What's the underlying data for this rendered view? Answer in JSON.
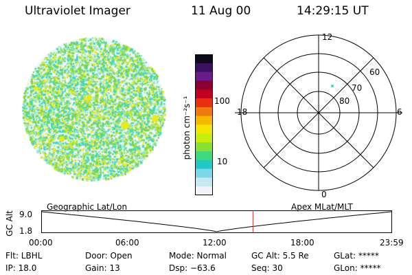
{
  "header": {
    "instrument": "Ultraviolet Imager",
    "date": "11 Aug 00",
    "time": "14:29:15 UT"
  },
  "colorbar": {
    "unit_label": "photon cm⁻²s⁻¹",
    "ticks": [
      "100",
      "10"
    ],
    "colors": [
      "#0a0a18",
      "#3a1060",
      "#6a1a8a",
      "#8a0030",
      "#c00020",
      "#e83010",
      "#f07a10",
      "#f5b800",
      "#f2e600",
      "#c8ee10",
      "#8ae030",
      "#40d880",
      "#20c8c8",
      "#7ad8e8",
      "#c8e8f0",
      "#f0f4f8"
    ]
  },
  "polar_plot": {
    "mlt_labels": {
      "top": "12",
      "left": "18",
      "right": "6",
      "bottom": "0"
    },
    "lat_labels": [
      "60",
      "70",
      "80"
    ]
  },
  "timeline": {
    "left_title": "Geographic Lat/Lon",
    "right_title": "Apex MLat/MLT",
    "ylabel": "GC Alt",
    "yticks": [
      "9.0",
      "1.8"
    ],
    "xticks": [
      "00:00",
      "06:00",
      "12:00",
      "18:00",
      "23:59"
    ],
    "current_time_fraction": 0.604
  },
  "info": {
    "flt": "Flt: LBHL",
    "ip": "IP: 18.0",
    "door": "Door: Open",
    "gain": "Gain: 13",
    "mode": "Mode: Normal",
    "dsp": "Dsp:  −63.6",
    "gc_alt": "GC Alt: 5.5 Re",
    "seq": "Seq: 30",
    "glat": "GLat: *****",
    "glon": "GLon: *****"
  },
  "accent_colors": {
    "marker_line": "#e03030",
    "noise_green": "#7ad24a",
    "noise_cyan": "#3fd8c0",
    "noise_yellow": "#e8ea1a"
  }
}
